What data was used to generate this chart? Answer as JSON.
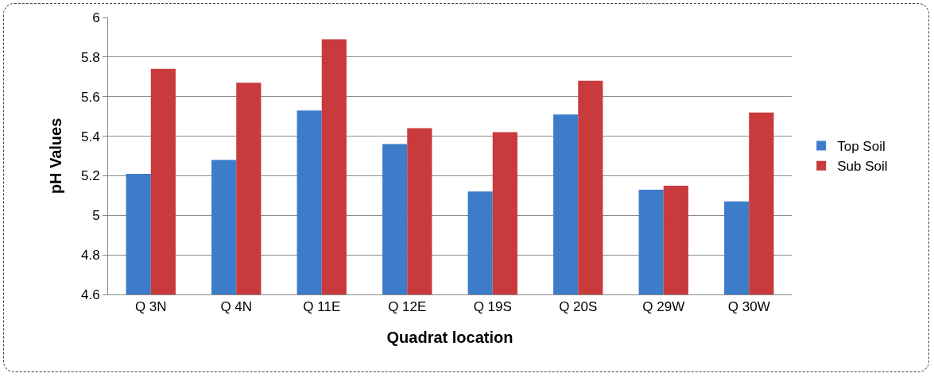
{
  "chart_data": {
    "type": "bar",
    "xlabel": "Quadrat location",
    "ylabel": "pH Values",
    "categories": [
      "Q 3N",
      "Q 4N",
      "Q 11E",
      "Q 12E",
      "Q 19S",
      "Q 20S",
      "Q 29W",
      "Q 30W"
    ],
    "series": [
      {
        "name": "Top Soil",
        "color": "#3d7cc9",
        "values": [
          5.21,
          5.28,
          5.53,
          5.36,
          5.12,
          5.51,
          5.13,
          5.07
        ]
      },
      {
        "name": "Sub Soil",
        "color": "#c93a3c",
        "values": [
          5.74,
          5.67,
          5.89,
          5.44,
          5.42,
          5.68,
          5.15,
          5.52
        ]
      }
    ],
    "ylim": [
      4.6,
      6
    ],
    "yticks": [
      4.6,
      4.8,
      5,
      5.2,
      5.4,
      5.6,
      5.8,
      6
    ],
    "grid": "y",
    "legend": "right"
  }
}
